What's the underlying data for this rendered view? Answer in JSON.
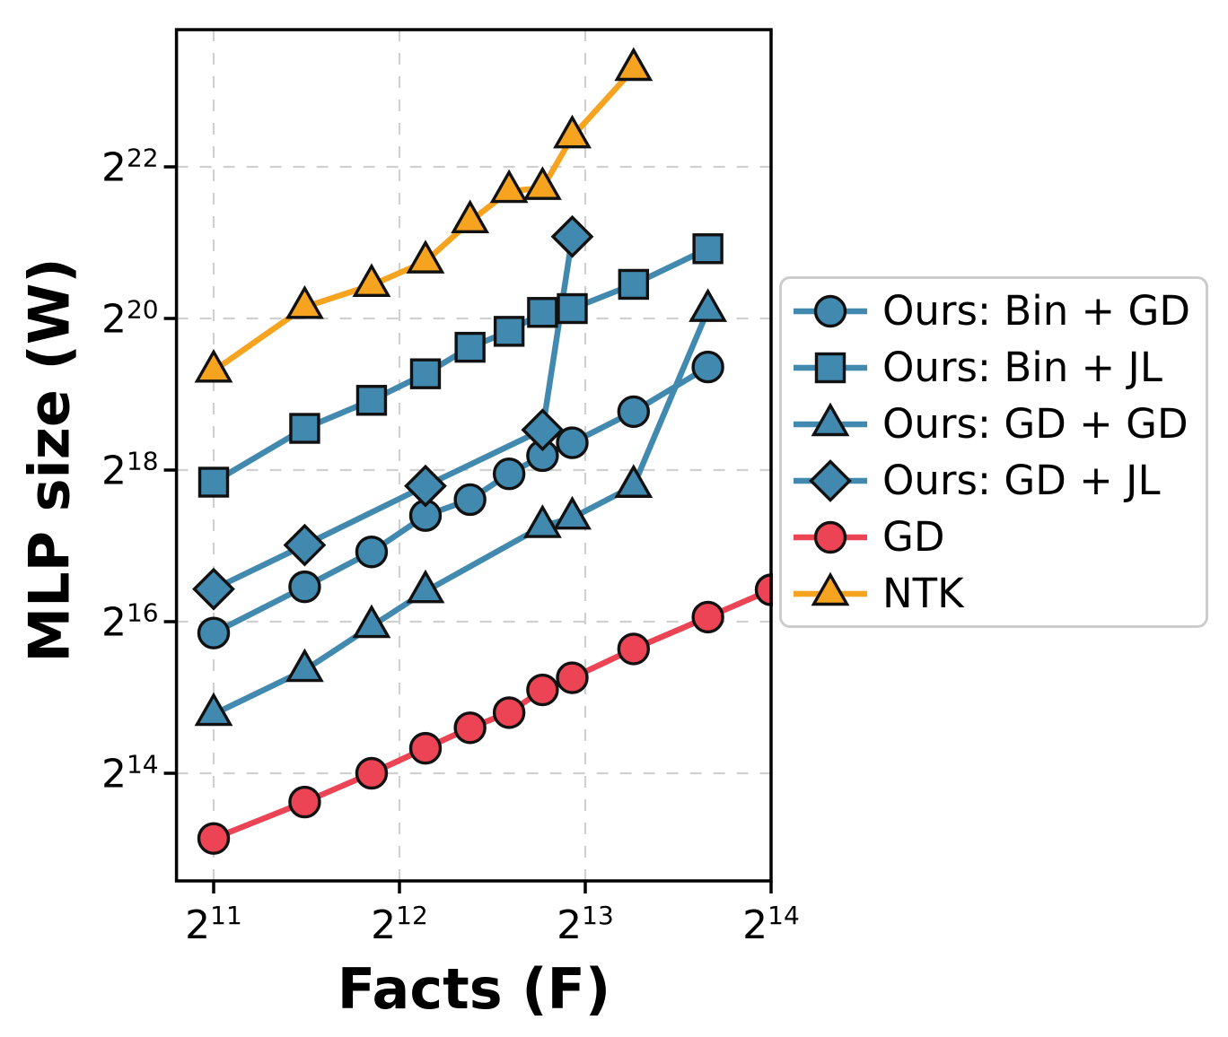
{
  "chart_data": {
    "type": "line",
    "title": "",
    "xlabel": "Facts (F)",
    "ylabel": "MLP size (W)",
    "x_scale": "log2",
    "y_scale": "log2",
    "x_tick_exponents": [
      11,
      12,
      13,
      14
    ],
    "y_tick_exponents": [
      14,
      16,
      18,
      20,
      22
    ],
    "tick_base": "2",
    "xlim_log2": [
      10.8,
      14.0
    ],
    "ylim_log2": [
      12.58,
      23.81
    ],
    "grid": true,
    "grid_style": "dashed",
    "legend_position": "center right outside",
    "colors": {
      "blue": "#4189ae",
      "red": "#ec4355",
      "orange": "#f6a320",
      "marker_edge": "#111111",
      "grid": "#d0d0d0",
      "legend_border": "#cccccc"
    },
    "series": [
      {
        "name": "Ours: Bin + GD",
        "marker": "circle",
        "color": "#4189ae",
        "x_log2": [
          11.0,
          11.49,
          11.85,
          12.14,
          12.38,
          12.59,
          12.77,
          12.93,
          13.26,
          13.66
        ],
        "y_log2": [
          15.85,
          16.46,
          16.92,
          17.4,
          17.61,
          17.95,
          18.19,
          18.36,
          18.77,
          19.36
        ]
      },
      {
        "name": "Ours: Bin + JL",
        "marker": "square",
        "color": "#4189ae",
        "x_log2": [
          11.0,
          11.49,
          11.85,
          12.14,
          12.38,
          12.59,
          12.77,
          12.93,
          13.26,
          13.66
        ],
        "y_log2": [
          17.84,
          18.55,
          18.92,
          19.27,
          19.62,
          19.83,
          20.08,
          20.13,
          20.45,
          20.92
        ]
      },
      {
        "name": "Ours: GD + GD",
        "marker": "triangle",
        "color": "#4189ae",
        "x_log2": [
          11.0,
          11.49,
          11.85,
          12.14,
          12.77,
          12.93,
          13.26,
          13.66
        ],
        "y_log2": [
          14.78,
          15.36,
          15.94,
          16.4,
          17.26,
          17.37,
          17.79,
          20.11
        ]
      },
      {
        "name": "Ours: GD + JL",
        "marker": "diamond",
        "color": "#4189ae",
        "x_log2": [
          11.0,
          11.49,
          12.14,
          12.77,
          12.93
        ],
        "y_log2": [
          16.43,
          17.01,
          17.79,
          18.53,
          21.08
        ]
      },
      {
        "name": "GD",
        "marker": "circle",
        "color": "#ec4355",
        "x_log2": [
          11.0,
          11.49,
          11.85,
          12.14,
          12.38,
          12.59,
          12.77,
          12.93,
          13.26,
          13.66,
          14.0
        ],
        "y_log2": [
          13.14,
          13.62,
          14.0,
          14.33,
          14.6,
          14.8,
          15.1,
          15.26,
          15.64,
          16.06,
          16.42
        ]
      },
      {
        "name": "NTK",
        "marker": "triangle",
        "color": "#f6a320",
        "x_log2": [
          11.0,
          11.49,
          11.85,
          12.14,
          12.38,
          12.59,
          12.77,
          12.93,
          13.26
        ],
        "y_log2": [
          19.31,
          20.15,
          20.44,
          20.75,
          21.28,
          21.68,
          21.72,
          22.4,
          23.29
        ]
      }
    ]
  }
}
